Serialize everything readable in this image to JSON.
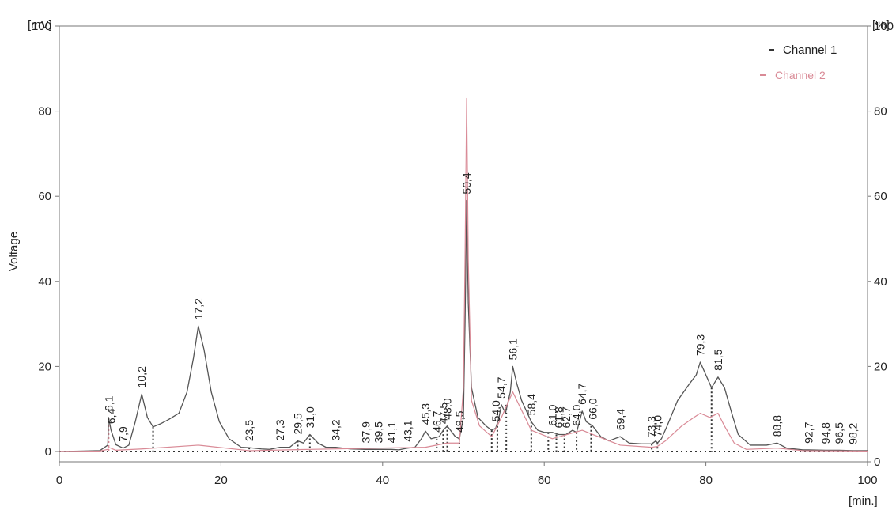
{
  "chart_data": {
    "type": "line",
    "xlabel": "[min.]",
    "ylabel": "Voltage",
    "y_unit_left": "[mV]",
    "y_unit_right": "[%]",
    "xlim": [
      0,
      100
    ],
    "ylim": [
      0,
      100
    ],
    "x_ticks": [
      "0",
      "20",
      "40",
      "60",
      "80",
      "100"
    ],
    "y_ticks_left": [
      "0",
      "20",
      "40",
      "60",
      "80",
      "100"
    ],
    "y_ticks_right": [
      "0",
      "20",
      "40",
      "60",
      "80",
      "100"
    ],
    "grid": false,
    "legend_position": "top-right",
    "series": [
      {
        "name": "Channel 1",
        "color": "#555555",
        "points": [
          [
            0,
            0
          ],
          [
            3,
            0.1
          ],
          [
            5,
            0.2
          ],
          [
            6,
            1.5
          ],
          [
            6.1,
            8
          ],
          [
            6.4,
            5
          ],
          [
            7,
            1.6
          ],
          [
            7.9,
            0.8
          ],
          [
            8.6,
            1.5
          ],
          [
            9.4,
            7
          ],
          [
            10.2,
            13.5
          ],
          [
            10.9,
            8
          ],
          [
            11.6,
            5.8
          ],
          [
            12.5,
            6.5
          ],
          [
            13.5,
            7.5
          ],
          [
            14.8,
            9
          ],
          [
            15.8,
            14
          ],
          [
            16.6,
            22
          ],
          [
            17.2,
            29.5
          ],
          [
            17.9,
            24
          ],
          [
            18.8,
            14
          ],
          [
            19.8,
            7
          ],
          [
            21,
            3
          ],
          [
            22.5,
            1
          ],
          [
            23.5,
            0.9
          ],
          [
            25,
            0.6
          ],
          [
            26,
            0.5
          ],
          [
            27.3,
            1
          ],
          [
            28.5,
            1
          ],
          [
            29.5,
            2.5
          ],
          [
            30.2,
            2
          ],
          [
            31,
            4
          ],
          [
            32,
            2
          ],
          [
            33,
            1
          ],
          [
            34.2,
            1
          ],
          [
            36,
            0.6
          ],
          [
            37.9,
            0.5
          ],
          [
            39.5,
            0.5
          ],
          [
            41.1,
            0.5
          ],
          [
            42,
            0.4
          ],
          [
            43.1,
            0.8
          ],
          [
            44,
            1
          ],
          [
            44.8,
            3
          ],
          [
            45.3,
            4.8
          ],
          [
            46,
            3
          ],
          [
            47,
            3.5
          ],
          [
            47.5,
            5
          ],
          [
            48,
            6
          ],
          [
            49,
            3.5
          ],
          [
            49.5,
            3
          ],
          [
            50,
            8
          ],
          [
            50.2,
            30
          ],
          [
            50.4,
            59
          ],
          [
            50.6,
            35
          ],
          [
            51,
            15
          ],
          [
            51.8,
            8
          ],
          [
            52.8,
            6
          ],
          [
            53.5,
            5
          ],
          [
            54,
            5.5
          ],
          [
            54.4,
            8
          ],
          [
            54.7,
            11
          ],
          [
            55.2,
            9
          ],
          [
            55.8,
            14
          ],
          [
            56.1,
            20
          ],
          [
            56.6,
            16
          ],
          [
            57.2,
            12
          ],
          [
            58.4,
            7
          ],
          [
            59.2,
            5
          ],
          [
            60,
            4.5
          ],
          [
            61,
            4.5
          ],
          [
            61.8,
            4
          ],
          [
            62.7,
            4
          ],
          [
            63.5,
            5
          ],
          [
            64,
            4.5
          ],
          [
            64.7,
            9.5
          ],
          [
            65.2,
            7
          ],
          [
            66,
            6
          ],
          [
            67,
            3.5
          ],
          [
            68,
            2.5
          ],
          [
            69.4,
            3.5
          ],
          [
            70.5,
            2
          ],
          [
            72,
            1.8
          ],
          [
            73.3,
            1.8
          ],
          [
            73.8,
            2.5
          ],
          [
            74,
            2
          ],
          [
            74.5,
            3
          ],
          [
            75.2,
            6
          ],
          [
            76.5,
            12
          ],
          [
            78,
            16
          ],
          [
            78.8,
            18
          ],
          [
            79.3,
            21
          ],
          [
            80,
            18
          ],
          [
            80.7,
            15
          ],
          [
            81.5,
            17.5
          ],
          [
            82.3,
            15
          ],
          [
            83.2,
            9
          ],
          [
            84,
            4
          ],
          [
            85.5,
            1.5
          ],
          [
            87.5,
            1.5
          ],
          [
            88.8,
            2
          ],
          [
            90,
            0.8
          ],
          [
            92,
            0.4
          ],
          [
            92.7,
            0.4
          ],
          [
            94.8,
            0.3
          ],
          [
            96.5,
            0.3
          ],
          [
            98.2,
            0.2
          ],
          [
            100,
            0.2
          ]
        ]
      },
      {
        "name": "Channel 2",
        "color": "#d98a96",
        "points": [
          [
            0,
            0
          ],
          [
            5,
            0.1
          ],
          [
            6,
            0.5
          ],
          [
            6.1,
            1
          ],
          [
            7,
            0.3
          ],
          [
            10.2,
            0.6
          ],
          [
            17.2,
            1.5
          ],
          [
            23.5,
            0.2
          ],
          [
            31,
            0.5
          ],
          [
            45.3,
            1
          ],
          [
            48,
            2
          ],
          [
            49.5,
            2
          ],
          [
            50,
            15
          ],
          [
            50.2,
            45
          ],
          [
            50.4,
            83
          ],
          [
            50.6,
            45
          ],
          [
            51,
            12
          ],
          [
            52,
            6
          ],
          [
            53.5,
            3.5
          ],
          [
            54.7,
            8
          ],
          [
            56.1,
            14
          ],
          [
            58.4,
            5
          ],
          [
            61,
            3
          ],
          [
            64.7,
            5
          ],
          [
            66,
            4
          ],
          [
            69.4,
            1.5
          ],
          [
            73.3,
            1
          ],
          [
            74,
            1.2
          ],
          [
            75,
            2.5
          ],
          [
            77,
            6
          ],
          [
            78.5,
            8
          ],
          [
            79.3,
            9
          ],
          [
            80.5,
            8
          ],
          [
            81.5,
            9
          ],
          [
            82.3,
            6
          ],
          [
            83.5,
            2
          ],
          [
            85,
            0.5
          ],
          [
            88.8,
            0.8
          ],
          [
            92,
            0.2
          ],
          [
            100,
            0.1
          ]
        ]
      }
    ],
    "peak_labels": [
      {
        "text": "6,1",
        "x": 6.1,
        "y": 8
      },
      {
        "text": "6,4",
        "x": 6.4,
        "y": 5
      },
      {
        "text": "7,9",
        "x": 7.9,
        "y": 0.8
      },
      {
        "text": "10,2",
        "x": 10.2,
        "y": 13.5
      },
      {
        "text": "17,2",
        "x": 17.2,
        "y": 29.5
      },
      {
        "text": "23,5",
        "x": 23.5,
        "y": 0.9
      },
      {
        "text": "27,3",
        "x": 27.3,
        "y": 1
      },
      {
        "text": "29,5",
        "x": 29.5,
        "y": 2.5
      },
      {
        "text": "31,0",
        "x": 31,
        "y": 4
      },
      {
        "text": "34,2",
        "x": 34.2,
        "y": 1
      },
      {
        "text": "37,9",
        "x": 37.9,
        "y": 0.5
      },
      {
        "text": "39,5",
        "x": 39.5,
        "y": 0.5
      },
      {
        "text": "41,1",
        "x": 41.1,
        "y": 0.5
      },
      {
        "text": "43,1",
        "x": 43.1,
        "y": 0.8
      },
      {
        "text": "45,3",
        "x": 45.3,
        "y": 4.8
      },
      {
        "text": "46,7",
        "x": 46.7,
        "y": 3
      },
      {
        "text": "47,5",
        "x": 47.5,
        "y": 5
      },
      {
        "text": "48,0",
        "x": 48,
        "y": 6
      },
      {
        "text": "49,5",
        "x": 49.5,
        "y": 3
      },
      {
        "text": "50,4",
        "x": 50.4,
        "y": 59
      },
      {
        "text": "54,0",
        "x": 54,
        "y": 5.5
      },
      {
        "text": "54,7",
        "x": 54.7,
        "y": 11
      },
      {
        "text": "56,1",
        "x": 56.1,
        "y": 20
      },
      {
        "text": "58,4",
        "x": 58.4,
        "y": 7
      },
      {
        "text": "61,0",
        "x": 61,
        "y": 4.5
      },
      {
        "text": "61,8",
        "x": 61.8,
        "y": 4
      },
      {
        "text": "62,7",
        "x": 62.7,
        "y": 4
      },
      {
        "text": "64,0",
        "x": 64,
        "y": 4.5
      },
      {
        "text": "64,7",
        "x": 64.7,
        "y": 9.5
      },
      {
        "text": "66,0",
        "x": 66,
        "y": 6
      },
      {
        "text": "69,4",
        "x": 69.4,
        "y": 3.5
      },
      {
        "text": "73,3",
        "x": 73.3,
        "y": 1.8
      },
      {
        "text": "74,0",
        "x": 74,
        "y": 2
      },
      {
        "text": "79,3",
        "x": 79.3,
        "y": 21
      },
      {
        "text": "81,5",
        "x": 81.5,
        "y": 17.5
      },
      {
        "text": "88,8",
        "x": 88.8,
        "y": 2
      },
      {
        "text": "92,7",
        "x": 92.7,
        "y": 0.4
      },
      {
        "text": "94,8",
        "x": 94.8,
        "y": 0.3
      },
      {
        "text": "96,5",
        "x": 96.5,
        "y": 0.3
      },
      {
        "text": "98,2",
        "x": 98.2,
        "y": 0.2
      }
    ],
    "baseline_y": 0,
    "peak_markers": [
      {
        "x": 6.1,
        "top": 8,
        "color": "#d98a96"
      },
      {
        "x": 11.6,
        "top": 5.8,
        "color": "#333333"
      },
      {
        "x": 23.5,
        "top": 0.9,
        "color": "#333333"
      },
      {
        "x": 29.5,
        "top": 2.5,
        "color": "#333333"
      },
      {
        "x": 31,
        "top": 4,
        "color": "#333333"
      },
      {
        "x": 46.7,
        "top": 3,
        "color": "#333333"
      },
      {
        "x": 47.5,
        "top": 5,
        "color": "#333333"
      },
      {
        "x": 48,
        "top": 6,
        "color": "#333333"
      },
      {
        "x": 49.5,
        "top": 3,
        "color": "#333333"
      },
      {
        "x": 53.5,
        "top": 5,
        "color": "#333333"
      },
      {
        "x": 54.2,
        "top": 6,
        "color": "#333333"
      },
      {
        "x": 55.3,
        "top": 11,
        "color": "#333333"
      },
      {
        "x": 58.4,
        "top": 7,
        "color": "#333333"
      },
      {
        "x": 60.5,
        "top": 4.5,
        "color": "#333333"
      },
      {
        "x": 61.5,
        "top": 4,
        "color": "#333333"
      },
      {
        "x": 62.5,
        "top": 4,
        "color": "#333333"
      },
      {
        "x": 64.0,
        "top": 4.5,
        "color": "#333333"
      },
      {
        "x": 65.8,
        "top": 6,
        "color": "#333333"
      },
      {
        "x": 73.3,
        "top": 1.8,
        "color": "#333333"
      },
      {
        "x": 74,
        "top": 2,
        "color": "#333333"
      },
      {
        "x": 80.7,
        "top": 15,
        "color": "#333333"
      }
    ]
  }
}
